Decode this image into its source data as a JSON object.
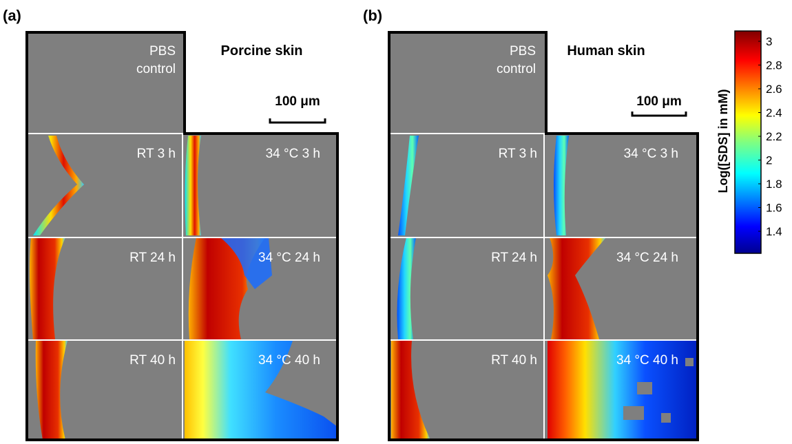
{
  "figure": {
    "panel_a": {
      "letter": "(a)",
      "title": "Porcine skin",
      "scale_bar": "100 μm",
      "control_label": [
        "PBS",
        "control"
      ],
      "tiles": [
        {
          "label": "RT 3 h"
        },
        {
          "label": "34 °C 3 h"
        },
        {
          "label": "RT 24 h"
        },
        {
          "label": "34 °C 24 h"
        },
        {
          "label": "RT 40 h"
        },
        {
          "label": "34 °C 40 h"
        }
      ]
    },
    "panel_b": {
      "letter": "(b)",
      "title": "Human skin",
      "scale_bar": "100 μm",
      "control_label": [
        "PBS",
        "control"
      ],
      "tiles": [
        {
          "label": "RT 3 h"
        },
        {
          "label": "34 °C 3 h"
        },
        {
          "label": "RT 24 h"
        },
        {
          "label": "34 °C 24 h"
        },
        {
          "label": "RT 40 h"
        },
        {
          "label": "34 °C 40 h"
        }
      ]
    },
    "colorbar": {
      "label": "Log([SDS] in mM)",
      "ticks": [
        "3",
        "2.8",
        "2.6",
        "2.4",
        "2.2",
        "2",
        "1.8",
        "1.6",
        "1.4"
      ],
      "colormap": "jet"
    },
    "colors": {
      "background_gray": "#7f7f7f",
      "frame": "#000000",
      "grid_line": "#ffffff"
    }
  }
}
